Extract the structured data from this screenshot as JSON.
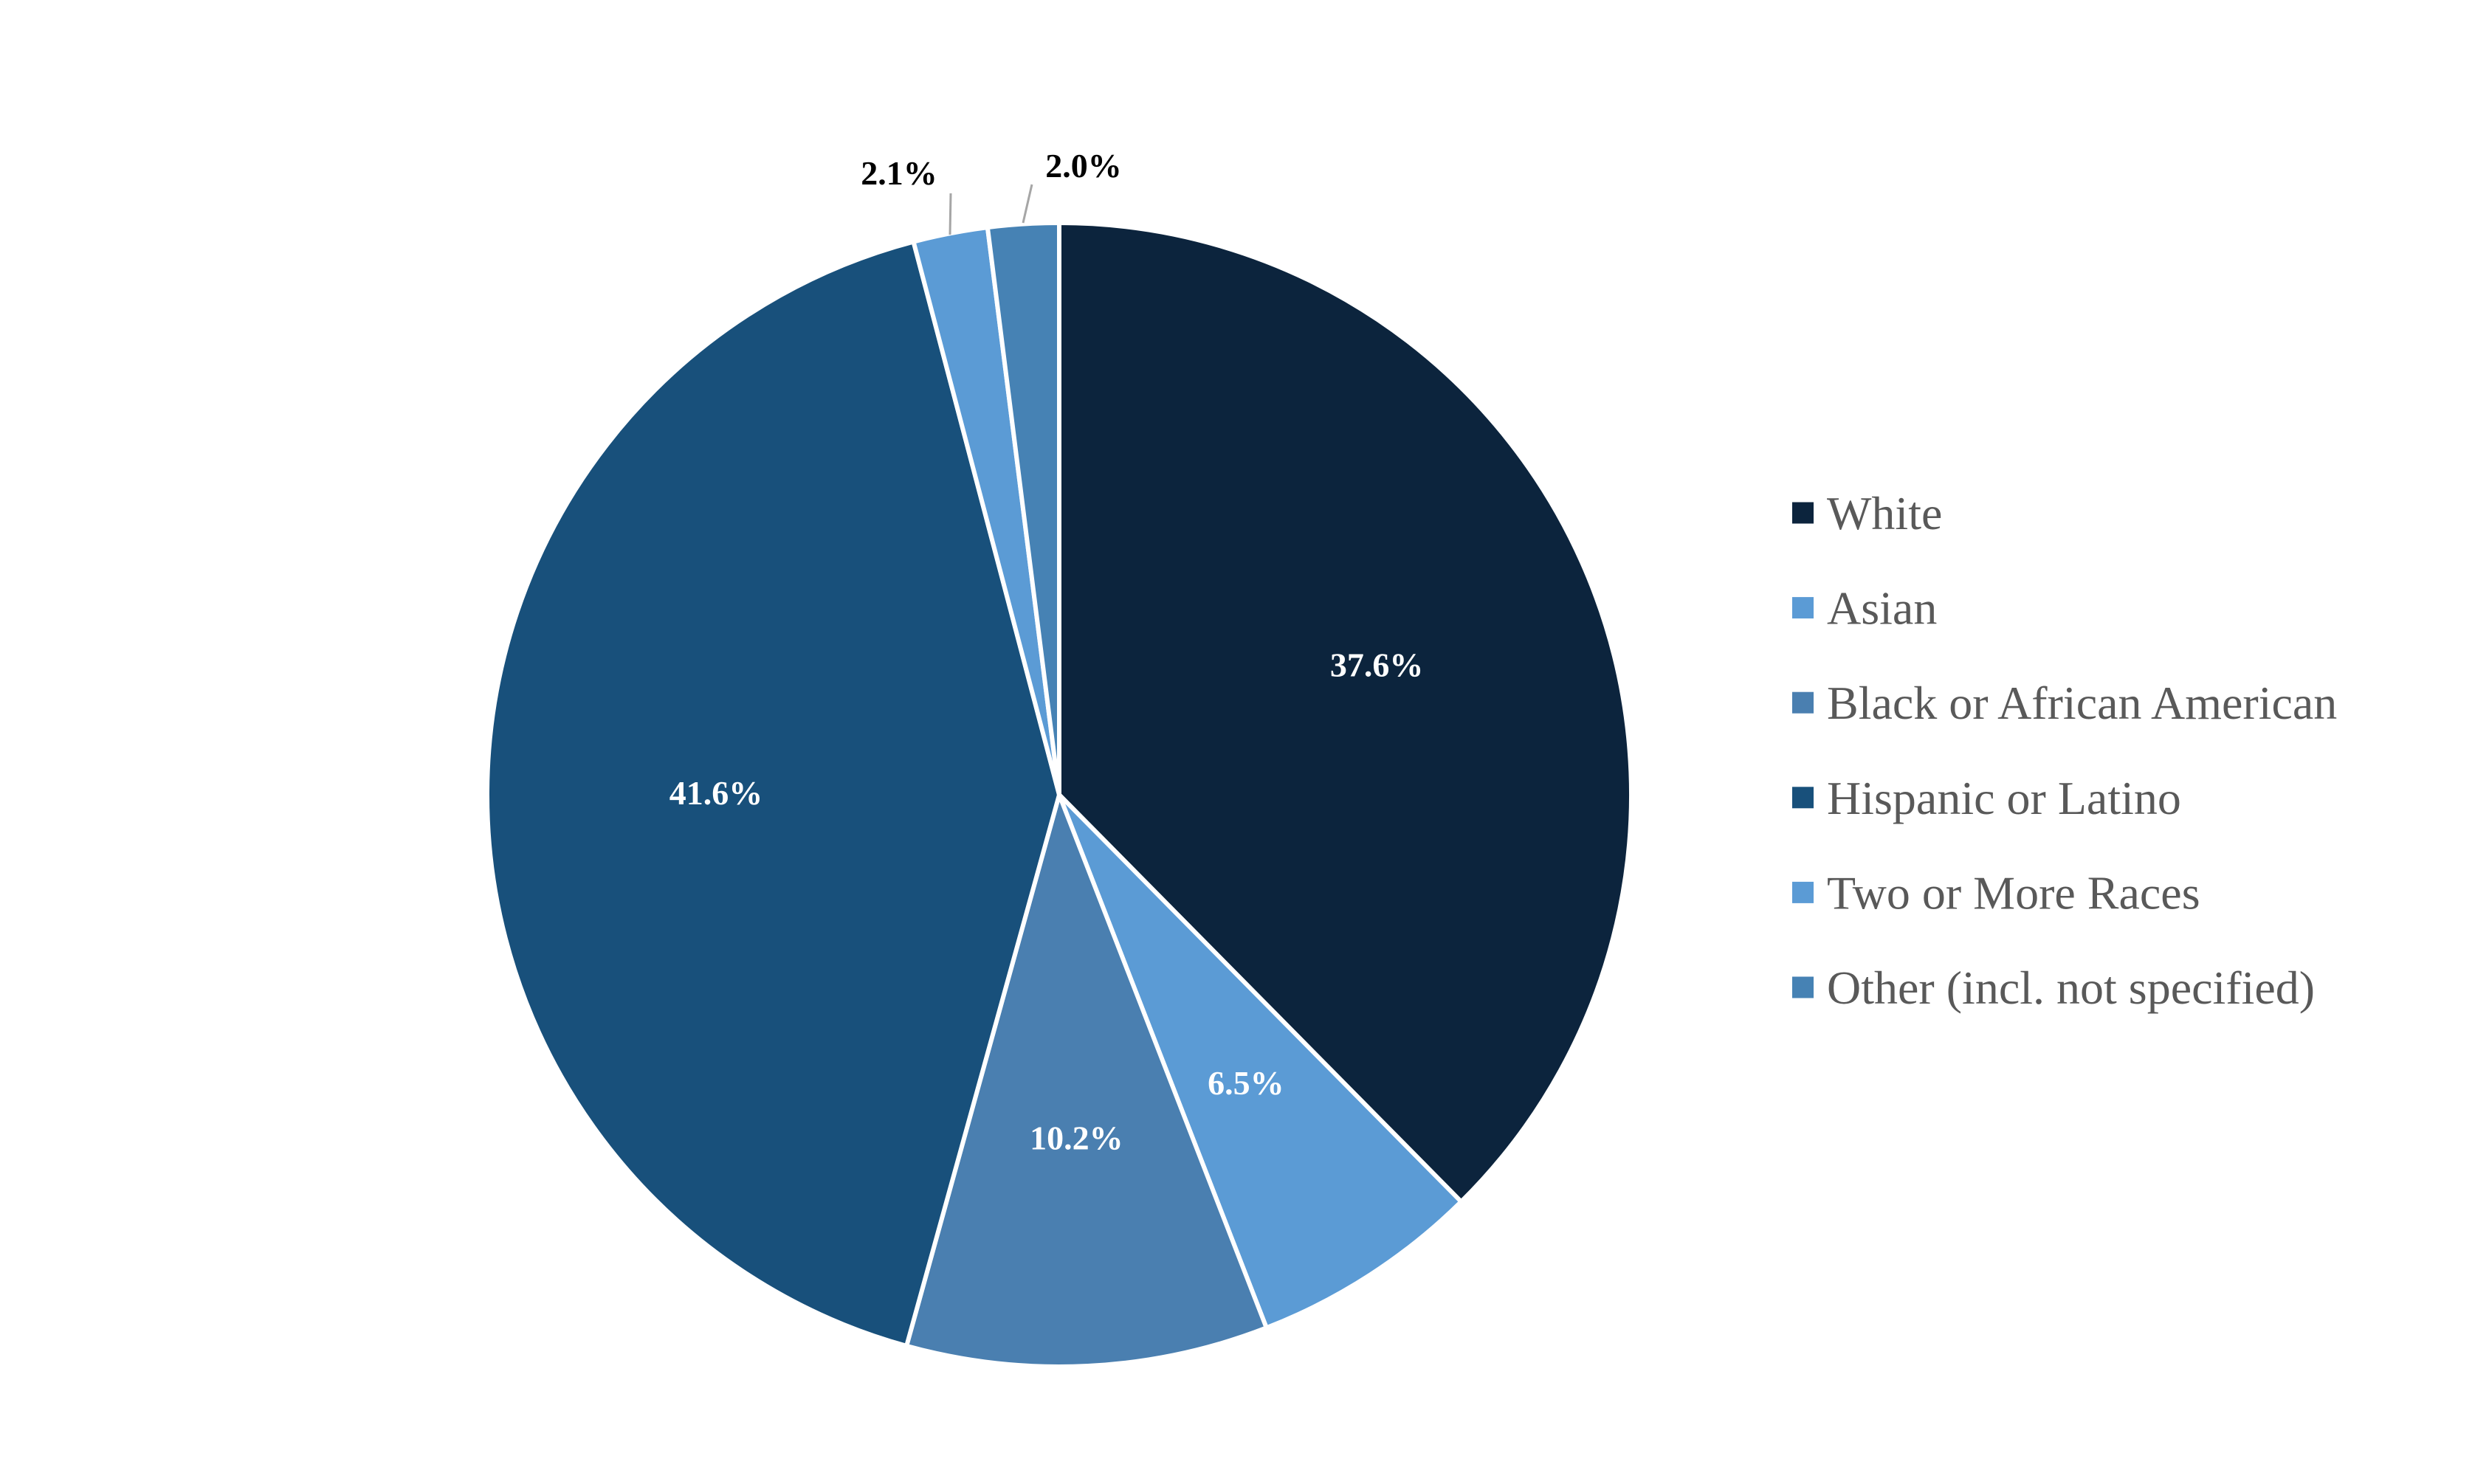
{
  "chart_data": {
    "type": "pie",
    "title": "",
    "start_angle_deg": 0,
    "direction": "clockwise",
    "legend_position": "right",
    "slices": [
      {
        "name": "White",
        "value": 37.6,
        "label": "37.6%",
        "color": "#0c243d",
        "label_position": "inside"
      },
      {
        "name": "Asian",
        "value": 6.5,
        "label": "6.5%",
        "color": "#5b9bd5",
        "label_position": "inside"
      },
      {
        "name": "Black or African American",
        "value": 10.2,
        "label": "10.2%",
        "color": "#4a7fb0",
        "label_position": "inside"
      },
      {
        "name": "Hispanic or Latino",
        "value": 41.6,
        "label": "41.6%",
        "color": "#18507b",
        "label_position": "inside"
      },
      {
        "name": "Two or More Races",
        "value": 2.1,
        "label": "2.1%",
        "color": "#5b9bd5",
        "label_position": "outside"
      },
      {
        "name": "Other (incl. not specified)",
        "value": 2.0,
        "label": "2.0%",
        "color": "#4682b4",
        "label_position": "outside"
      }
    ]
  }
}
